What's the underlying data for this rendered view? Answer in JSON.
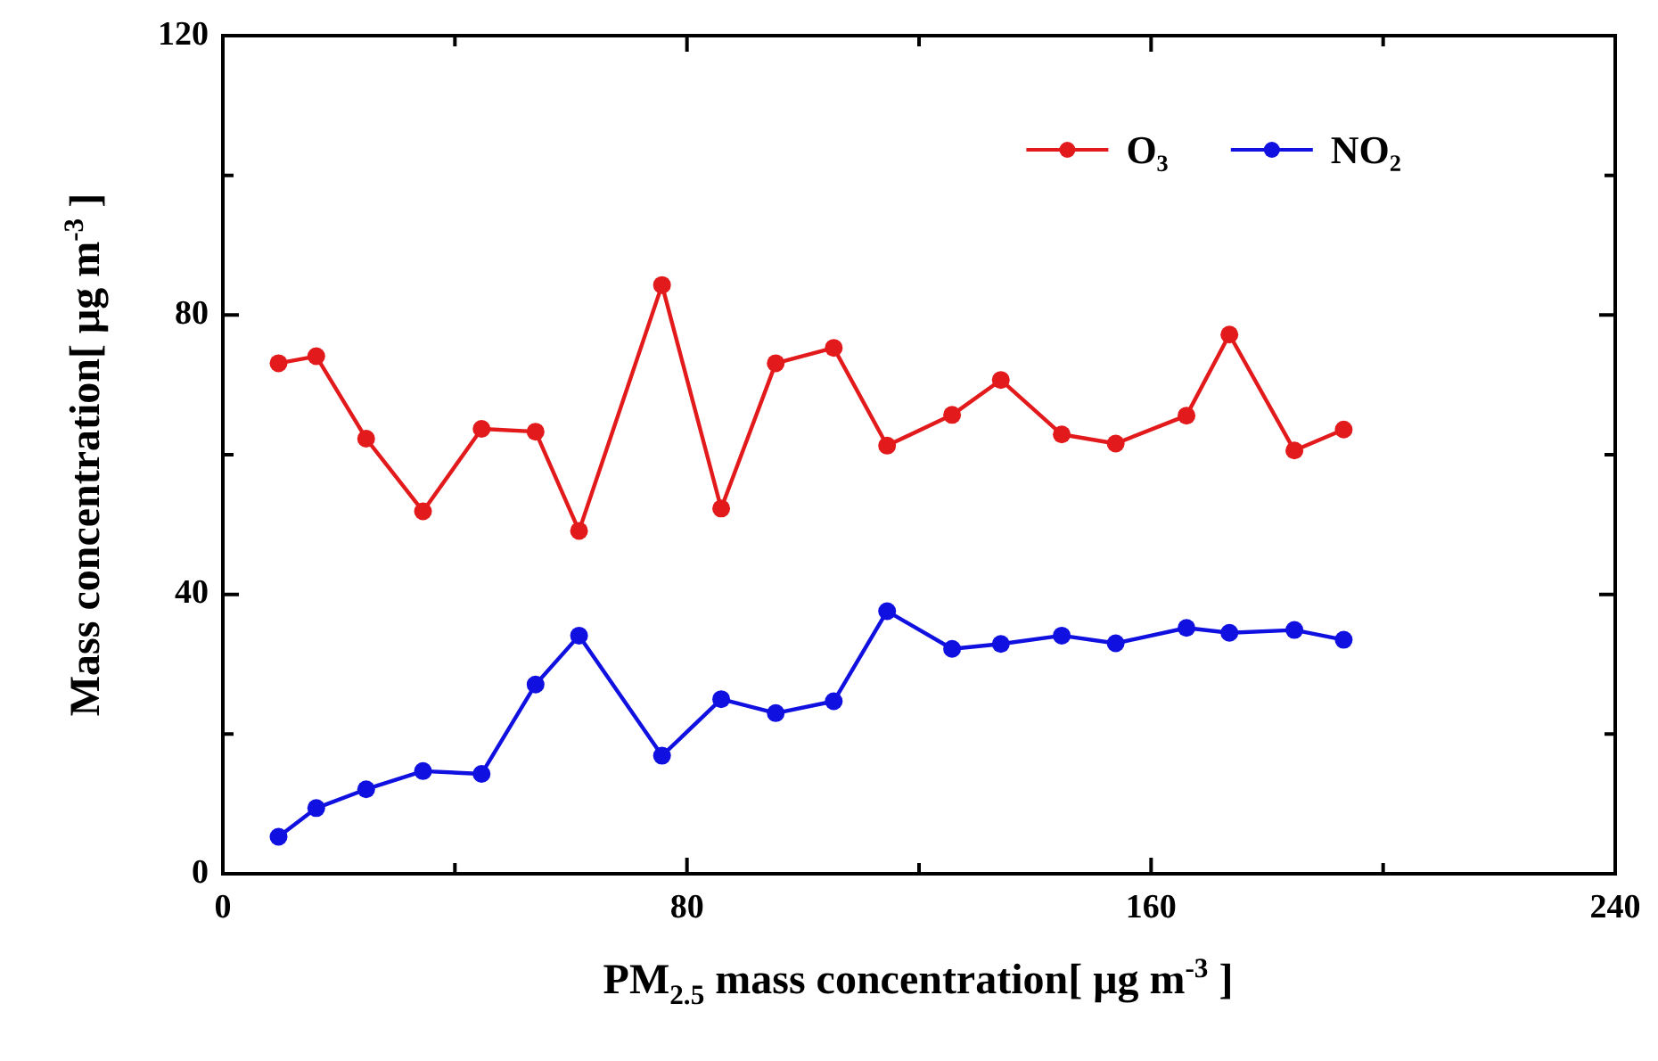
{
  "chart_data": {
    "type": "line",
    "xlabel": "PM$_{2.5}$ mass concentration[ μg m$^{-3}$ ]",
    "ylabel": "Mass concentration[ μg m$^{-3}$ ]",
    "xlim": [
      0,
      240
    ],
    "xticks": [
      0,
      {
        "value": 40,
        "label": null
      },
      80,
      {
        "value": 120,
        "label": null
      },
      160,
      {
        "value": 200,
        "label": null
      },
      240
    ],
    "ylim": [
      0,
      120
    ],
    "yticks": [
      0,
      {
        "value": 20,
        "label": null
      },
      40,
      {
        "value": 60,
        "label": null
      },
      80,
      {
        "value": 100,
        "label": null
      },
      120
    ],
    "grid": false,
    "legend": "top right",
    "marker": "circle",
    "line_style": "solid",
    "series": [
      {
        "name": "O₃",
        "color": "#e31a1c",
        "x": [
          9.6,
          16.1,
          24.7,
          34.5,
          44.6,
          53.9,
          61.4,
          75.7,
          85.9,
          95.3,
          105.3,
          114.5,
          125.7,
          134.1,
          144.6,
          153.9,
          166.1,
          173.5,
          184.7,
          193.2
        ],
        "values": [
          73.1,
          74.1,
          62.3,
          51.9,
          63.7,
          63.3,
          49.1,
          84.3,
          52.3,
          73.1,
          75.3,
          61.3,
          65.7,
          70.7,
          62.9,
          61.6,
          65.6,
          77.2,
          60.6,
          63.6
        ]
      },
      {
        "name": "NO₂",
        "color": "#1010e0",
        "x": [
          9.6,
          16.1,
          24.7,
          34.5,
          44.6,
          53.9,
          61.4,
          75.7,
          85.9,
          95.3,
          105.3,
          114.5,
          125.7,
          134.1,
          144.6,
          153.9,
          166.1,
          173.5,
          184.7,
          193.2
        ],
        "values": [
          5.3,
          9.4,
          12.1,
          14.7,
          14.3,
          27.1,
          34.1,
          16.9,
          25.0,
          23.0,
          24.7,
          37.6,
          32.2,
          32.9,
          34.1,
          33.0,
          35.2,
          34.5,
          34.9,
          33.5
        ]
      }
    ]
  }
}
